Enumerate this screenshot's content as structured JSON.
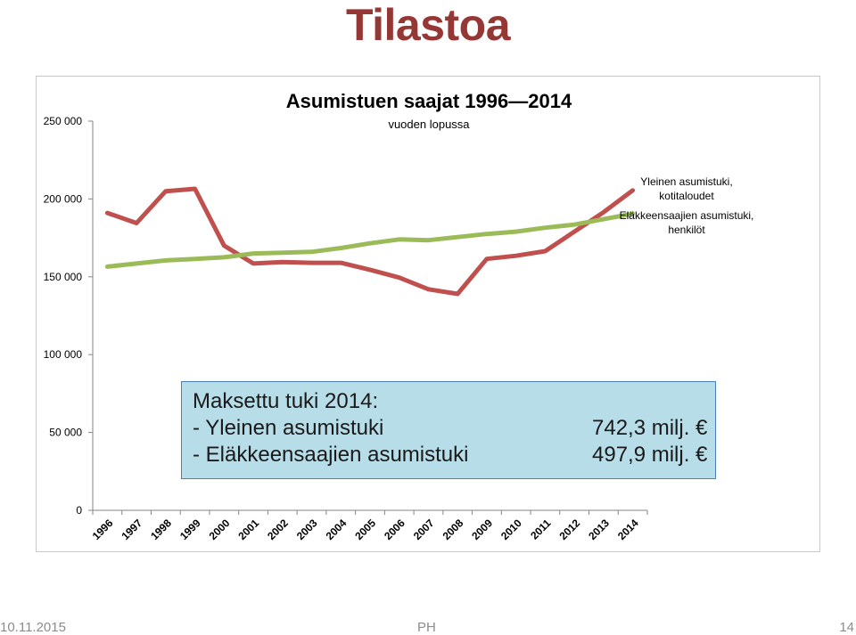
{
  "slide": {
    "title": "Tilastoa",
    "footer_date": "10.11.2015",
    "footer_author": "PH",
    "page_number": "14"
  },
  "note": {
    "heading": "Maksettu tuki 2014:",
    "rows": [
      {
        "label": "-  Yleinen asumistuki",
        "value": "742,3 milj. €"
      },
      {
        "label": "-  Eläkkeensaajien asumistuki",
        "value": "497,9 milj. €"
      }
    ]
  },
  "chart_data": {
    "type": "line",
    "title": "Asumistuen saajat 1996—2014",
    "subtitle": "vuoden lopussa",
    "xlabel": "",
    "ylabel": "",
    "ylim": [
      0,
      250000
    ],
    "y_ticks": [
      0,
      50000,
      100000,
      150000,
      200000,
      250000
    ],
    "y_tick_labels": [
      "0",
      "50 000",
      "100 000",
      "150 000",
      "200 000",
      "250 000"
    ],
    "categories": [
      "1996",
      "1997",
      "1998",
      "1999",
      "2000",
      "2001",
      "2002",
      "2003",
      "2004",
      "2005",
      "2006",
      "2007",
      "2008",
      "2009",
      "2010",
      "2011",
      "2012",
      "2013",
      "2014"
    ],
    "grid": false,
    "legend_position": "top-right",
    "series": [
      {
        "name": "Yleinen asumistuki, kotitaloudet",
        "color": "#c0504d",
        "values": [
          191000,
          184500,
          205000,
          206500,
          170000,
          158500,
          159500,
          159000,
          159000,
          154500,
          149500,
          142000,
          139000,
          161500,
          163500,
          166500,
          179000,
          191500,
          205500
        ]
      },
      {
        "name": "Eläkkeensaajien asumistuki, henkilöt",
        "color": "#9bbb59",
        "values": [
          156500,
          158500,
          160500,
          161500,
          162500,
          165000,
          165500,
          166000,
          168500,
          171500,
          174000,
          173500,
          175500,
          177500,
          179000,
          181500,
          183500,
          187000,
          190500
        ]
      }
    ]
  }
}
